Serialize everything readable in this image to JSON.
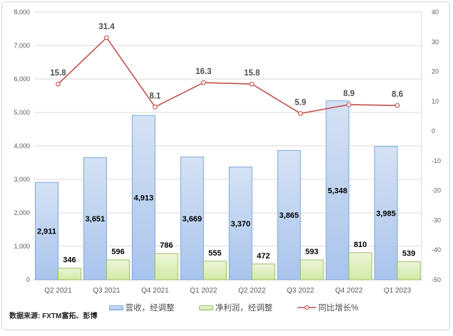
{
  "chart_data": {
    "type": "bar+line",
    "categories": [
      "Q2 2021",
      "Q3 2021",
      "Q4 2021",
      "Q1 2022",
      "Q2 2022",
      "Q3 2022",
      "Q4 2022",
      "Q1 2023"
    ],
    "series": [
      {
        "name": "营收，经调整",
        "type": "bar",
        "values": [
          2911,
          3651,
          4913,
          3669,
          3370,
          3865,
          5348,
          3985
        ],
        "fill_top": "#d5e2f4",
        "fill_bottom": "#a9c4ec",
        "border": "#7ea6d8"
      },
      {
        "name": "净利润，经调整",
        "type": "bar",
        "values": [
          346,
          596,
          786,
          555,
          472,
          593,
          810,
          539
        ],
        "fill_top": "#edf6da",
        "fill_bottom": "#d2e9a6",
        "border": "#9cbf5e"
      },
      {
        "name": "同比增长%",
        "type": "line",
        "axis": "right",
        "values": [
          15.8,
          31.4,
          8.1,
          16.3,
          15.8,
          5.9,
          8.9,
          8.6
        ],
        "color": "#c0504d",
        "marker_fill": "#ffffff"
      }
    ],
    "left_axis": {
      "min": 0,
      "max": 8000,
      "step": 1000
    },
    "right_axis": {
      "min": -50,
      "max": 40,
      "step": 10
    },
    "grid": true,
    "grid_color": "#d9d9d9",
    "axis_line_color": "#a6a6a6",
    "axis_text_color": "#595959",
    "bar_label_color": "#000000",
    "line_label_color": "#4f4f4f",
    "legend_position": "bottom"
  },
  "footer": {
    "source_note": "数据来源: FXTM富拓、彭博"
  }
}
